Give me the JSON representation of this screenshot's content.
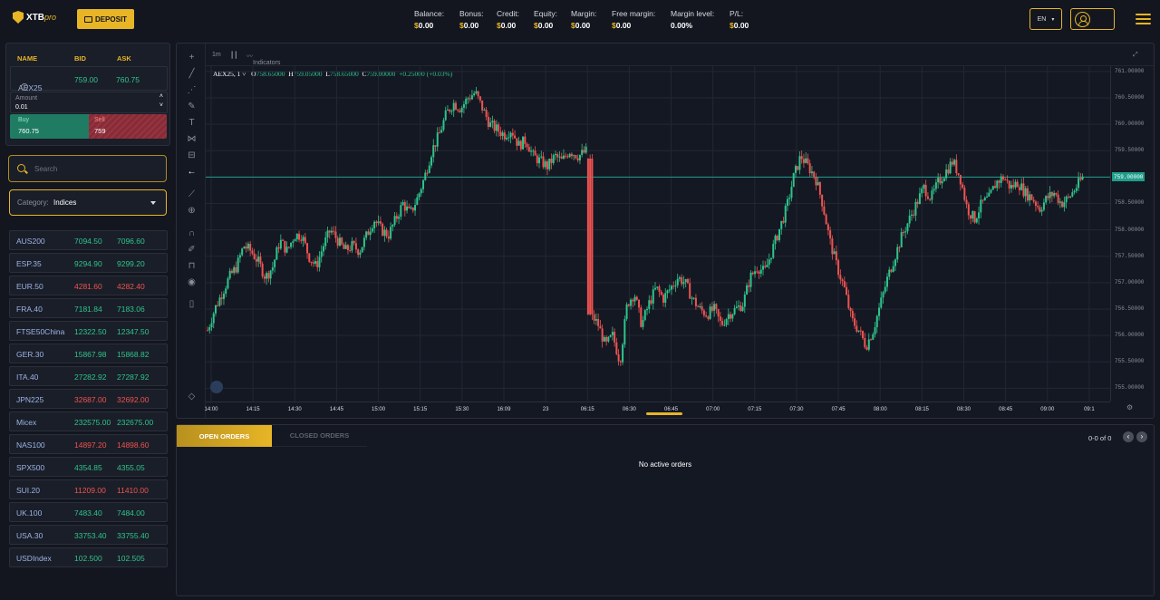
{
  "header": {
    "brand": "XTB",
    "brand_suffix": "pro",
    "deposit_label": "DEPOSIT",
    "stats": [
      {
        "label": "Balance:",
        "currency": "$",
        "value": "0.00"
      },
      {
        "label": "Bonus:",
        "currency": "$",
        "value": "0.00"
      },
      {
        "label": "Credit:",
        "currency": "$",
        "value": "0.00"
      },
      {
        "label": "Equity:",
        "currency": "$",
        "value": "0.00"
      },
      {
        "label": "Margin:",
        "currency": "$",
        "value": "0.00"
      },
      {
        "label": "Free margin:",
        "currency": "$",
        "value": "0.00"
      },
      {
        "label": "Margin level:",
        "currency": "",
        "value": "0.00%"
      },
      {
        "label": "P/L:",
        "currency": "$",
        "value": "0.00"
      }
    ],
    "language": "EN"
  },
  "ticket": {
    "col_name": "NAME",
    "col_bid": "BID",
    "col_ask": "ASK",
    "symbol": "AEX25",
    "bid": "759.00",
    "ask": "760.75",
    "amount_label": "Amount",
    "amount_value": "0.01",
    "buy_label": "Buy",
    "buy_price": "760.75",
    "sell_label": "Sell",
    "sell_price": "759"
  },
  "search": {
    "placeholder": "Search"
  },
  "category": {
    "label": "Category:",
    "value": "Indices"
  },
  "instruments": [
    {
      "name": "AUS200",
      "bid": "7094.50",
      "ask": "7096.60",
      "dir": "up"
    },
    {
      "name": "ESP.35",
      "bid": "9294.90",
      "ask": "9299.20",
      "dir": "up"
    },
    {
      "name": "EUR.50",
      "bid": "4281.60",
      "ask": "4282.40",
      "dir": "dn"
    },
    {
      "name": "FRA.40",
      "bid": "7181.84",
      "ask": "7183.06",
      "dir": "up"
    },
    {
      "name": "FTSE50China",
      "bid": "12322.50",
      "ask": "12347.50",
      "dir": "up"
    },
    {
      "name": "GER.30",
      "bid": "15867.98",
      "ask": "15868.82",
      "dir": "up"
    },
    {
      "name": "ITA.40",
      "bid": "27282.92",
      "ask": "27287.92",
      "dir": "up"
    },
    {
      "name": "JPN225",
      "bid": "32687.00",
      "ask": "32692.00",
      "dir": "dn"
    },
    {
      "name": "Micex",
      "bid": "232575.00",
      "ask": "232675.00",
      "dir": "up"
    },
    {
      "name": "NAS100",
      "bid": "14897.20",
      "ask": "14898.60",
      "dir": "dn"
    },
    {
      "name": "SPX500",
      "bid": "4354.85",
      "ask": "4355.05",
      "dir": "up"
    },
    {
      "name": "SUI.20",
      "bid": "11209.00",
      "ask": "11410.00",
      "dir": "dn"
    },
    {
      "name": "UK.100",
      "bid": "7483.40",
      "ask": "7484.00",
      "dir": "up"
    },
    {
      "name": "USA.30",
      "bid": "33753.40",
      "ask": "33755.40",
      "dir": "up"
    },
    {
      "name": "USDIndex",
      "bid": "102.500",
      "ask": "102.505",
      "dir": "up"
    }
  ],
  "chart_toolbar": {
    "interval": "1m",
    "indicators": "Indicators"
  },
  "chart_legend": {
    "symbol": "AEX25, 1",
    "o": "758.65000",
    "h": "759.05000",
    "l": "758.65000",
    "c": "759.00000",
    "change": "+0.25000 (+0.03%)"
  },
  "chart_data": {
    "type": "candlestick",
    "ylim": [
      754.75,
      761.1
    ],
    "yticks": [
      "761.00000",
      "760.50000",
      "760.00000",
      "759.50000",
      "759.00000",
      "758.50000",
      "758.00000",
      "757.50000",
      "757.00000",
      "756.50000",
      "756.00000",
      "755.50000",
      "755.00000"
    ],
    "current_price": "759.00000",
    "xticks": [
      "14:00",
      "14:15",
      "14:30",
      "14:45",
      "15:00",
      "15:15",
      "15:30",
      "16:09",
      "23",
      "06:15",
      "06:30",
      "06:45",
      "07:00",
      "07:15",
      "07:30",
      "07:45",
      "08:00",
      "08:15",
      "08:30",
      "08:45",
      "09:00",
      "09:1"
    ],
    "xlim": [
      0,
      1000
    ],
    "close_path": [
      [
        0,
        756.1
      ],
      [
        8,
        756.5
      ],
      [
        16,
        756.8
      ],
      [
        24,
        757.1
      ],
      [
        32,
        757.3
      ],
      [
        40,
        757.7
      ],
      [
        48,
        757.6
      ],
      [
        56,
        757.4
      ],
      [
        64,
        757.1
      ],
      [
        72,
        757.3
      ],
      [
        80,
        757.8
      ],
      [
        88,
        757.6
      ],
      [
        96,
        757.9
      ],
      [
        104,
        757.9
      ],
      [
        112,
        757.5
      ],
      [
        120,
        757.3
      ],
      [
        128,
        757.7
      ],
      [
        136,
        758.0
      ],
      [
        144,
        757.8
      ],
      [
        152,
        757.6
      ],
      [
        160,
        757.7
      ],
      [
        168,
        757.6
      ],
      [
        176,
        757.9
      ],
      [
        184,
        758.2
      ],
      [
        192,
        758.0
      ],
      [
        200,
        757.9
      ],
      [
        208,
        758.2
      ],
      [
        216,
        758.5
      ],
      [
        224,
        758.3
      ],
      [
        232,
        758.6
      ],
      [
        240,
        759.0
      ],
      [
        248,
        759.5
      ],
      [
        256,
        759.8
      ],
      [
        264,
        760.2
      ],
      [
        272,
        760.4
      ],
      [
        280,
        760.3
      ],
      [
        288,
        760.5
      ],
      [
        296,
        760.6
      ],
      [
        304,
        760.3
      ],
      [
        312,
        760.0
      ],
      [
        320,
        759.9
      ],
      [
        328,
        759.8
      ],
      [
        336,
        759.9
      ],
      [
        344,
        759.6
      ],
      [
        352,
        759.7
      ],
      [
        360,
        759.4
      ],
      [
        368,
        759.3
      ],
      [
        376,
        759.2
      ],
      [
        384,
        759.4
      ],
      [
        392,
        759.3
      ],
      [
        400,
        759.5
      ],
      [
        410,
        759.4
      ],
      [
        420,
        759.5
      ],
      [
        424,
        756.4
      ],
      [
        432,
        756.2
      ],
      [
        440,
        755.8
      ],
      [
        448,
        756.0
      ],
      [
        456,
        755.5
      ],
      [
        464,
        756.6
      ],
      [
        472,
        756.8
      ],
      [
        480,
        756.2
      ],
      [
        488,
        756.6
      ],
      [
        496,
        756.9
      ],
      [
        504,
        756.7
      ],
      [
        512,
        756.9
      ],
      [
        520,
        757.1
      ],
      [
        528,
        757.0
      ],
      [
        536,
        756.7
      ],
      [
        544,
        756.5
      ],
      [
        552,
        756.4
      ],
      [
        560,
        756.5
      ],
      [
        568,
        756.2
      ],
      [
        576,
        756.4
      ],
      [
        584,
        756.5
      ],
      [
        592,
        756.6
      ],
      [
        600,
        757.1
      ],
      [
        608,
        757.3
      ],
      [
        616,
        757.2
      ],
      [
        624,
        757.6
      ],
      [
        632,
        758.0
      ],
      [
        640,
        758.4
      ],
      [
        648,
        759.0
      ],
      [
        656,
        759.4
      ],
      [
        664,
        759.2
      ],
      [
        672,
        759.0
      ],
      [
        680,
        758.5
      ],
      [
        688,
        757.8
      ],
      [
        696,
        757.3
      ],
      [
        704,
        756.9
      ],
      [
        712,
        756.3
      ],
      [
        720,
        756.1
      ],
      [
        728,
        755.8
      ],
      [
        736,
        756.1
      ],
      [
        744,
        756.6
      ],
      [
        752,
        757.1
      ],
      [
        760,
        757.5
      ],
      [
        768,
        757.9
      ],
      [
        776,
        758.2
      ],
      [
        784,
        758.5
      ],
      [
        792,
        758.8
      ],
      [
        800,
        758.6
      ],
      [
        808,
        758.9
      ],
      [
        816,
        759.1
      ],
      [
        824,
        759.3
      ],
      [
        832,
        759.0
      ],
      [
        840,
        758.4
      ],
      [
        848,
        758.2
      ],
      [
        856,
        758.5
      ],
      [
        864,
        758.6
      ],
      [
        872,
        758.9
      ],
      [
        880,
        759.0
      ],
      [
        888,
        758.8
      ],
      [
        896,
        758.9
      ],
      [
        904,
        758.7
      ],
      [
        912,
        758.6
      ],
      [
        920,
        758.4
      ],
      [
        928,
        758.6
      ],
      [
        936,
        758.7
      ],
      [
        944,
        758.5
      ],
      [
        952,
        758.6
      ],
      [
        960,
        758.8
      ],
      [
        968,
        759.0
      ]
    ]
  },
  "orders": {
    "tab_open": "OPEN ORDERS",
    "tab_closed": "CLOSED ORDERS",
    "count": "0-0 of 0",
    "empty": "No active orders"
  },
  "colors": {
    "accent": "#e7b526",
    "up": "#2ec48c",
    "down": "#ef5350"
  }
}
